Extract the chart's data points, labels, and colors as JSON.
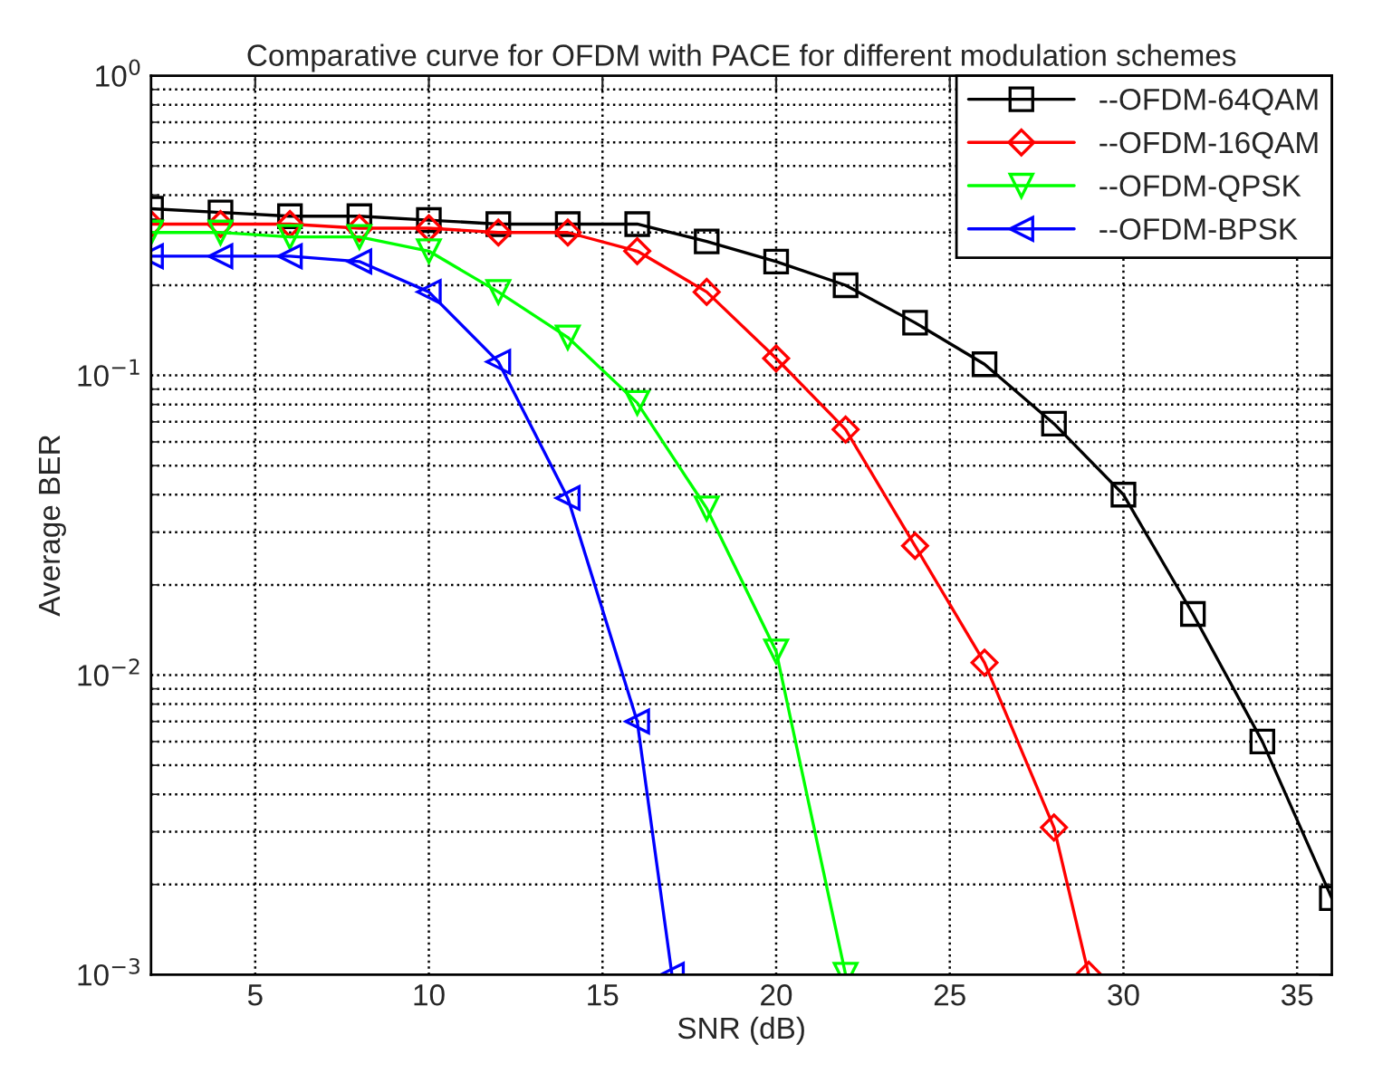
{
  "chart_data": {
    "type": "line",
    "title": "Comparative curve for OFDM with PACE for different modulation schemes",
    "xlabel": "SNR (dB)",
    "ylabel": "Average BER",
    "log": "y",
    "grid": true,
    "legend": "top right",
    "xlim": [
      2,
      36
    ],
    "xticks": [
      5,
      10,
      15,
      20,
      25,
      30,
      35
    ],
    "ylim": [
      0.001,
      1
    ],
    "yticks": [
      {
        "value": 0.001,
        "label": "10$^{−3}$"
      },
      {
        "value": 0.01,
        "label": "10$^{−2}$"
      },
      {
        "value": 0.1,
        "label": "10$^{−1}$"
      },
      {
        "value": 1,
        "label": "10$^{0}$"
      }
    ],
    "series": [
      {
        "name": "--OFDM-64QAM",
        "color": "#000000",
        "marker": "square",
        "x": [
          2,
          4,
          6,
          8,
          10,
          12,
          14,
          16,
          18,
          20,
          22,
          24,
          26,
          28,
          30,
          32,
          34,
          36
        ],
        "values": [
          0.36,
          0.35,
          0.34,
          0.34,
          0.33,
          0.32,
          0.32,
          0.32,
          0.28,
          0.24,
          0.2,
          0.15,
          0.109,
          0.069,
          0.04,
          0.016,
          0.006,
          0.0018
        ]
      },
      {
        "name": "--OFDM-16QAM",
        "color": "#ff0000",
        "marker": "diamond",
        "x": [
          2,
          4,
          6,
          8,
          10,
          12,
          14,
          16,
          18,
          20,
          22,
          24,
          26,
          28,
          29
        ],
        "values": [
          0.32,
          0.32,
          0.32,
          0.31,
          0.31,
          0.3,
          0.3,
          0.26,
          0.19,
          0.114,
          0.066,
          0.027,
          0.011,
          0.0031,
          0.001
        ]
      },
      {
        "name": "--OFDM-QPSK",
        "color": "#00ff00",
        "marker": "triangle_down",
        "x": [
          2,
          4,
          6,
          8,
          10,
          12,
          14,
          16,
          18,
          20,
          22
        ],
        "values": [
          0.3,
          0.3,
          0.29,
          0.29,
          0.26,
          0.19,
          0.134,
          0.081,
          0.036,
          0.012,
          0.001
        ]
      },
      {
        "name": "--OFDM-BPSK",
        "color": "#0000ff",
        "marker": "triangle_left",
        "x": [
          2,
          4,
          6,
          8,
          10,
          12,
          14,
          16,
          17
        ],
        "values": [
          0.25,
          0.25,
          0.25,
          0.24,
          0.19,
          0.111,
          0.039,
          0.007,
          0.001
        ]
      }
    ]
  }
}
